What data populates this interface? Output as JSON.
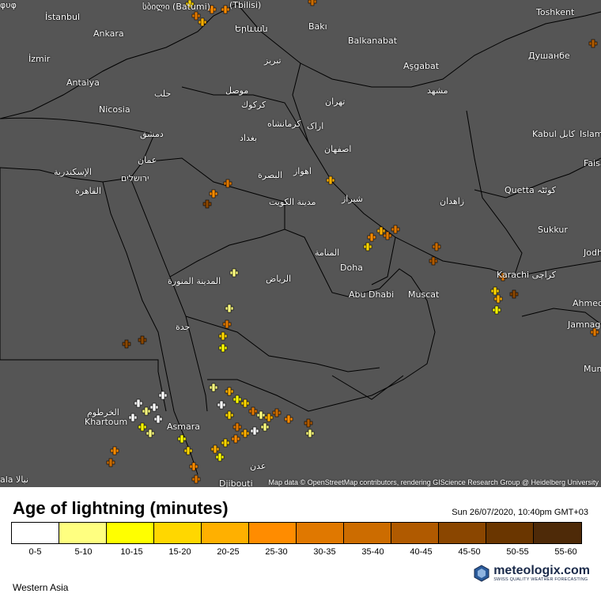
{
  "map": {
    "attribution": "Map data © OpenStreetMap contributors, rendering GIScience Research Group @ Heidelberg University",
    "cities": [
      {
        "name": "სბილი (Batumi)",
        "id": "batumi"
      },
      {
        "name": "(Tbilisi)",
        "id": "tbilisi"
      },
      {
        "name": "İstanbul",
        "id": "istanbul"
      },
      {
        "name": "Ankara",
        "id": "ankara"
      },
      {
        "name": "Երևան",
        "id": "yerevan"
      },
      {
        "name": "Bakı",
        "id": "baku"
      },
      {
        "name": "Balkanabat",
        "id": "balkanabat"
      },
      {
        "name": "Aşgabat",
        "id": "ashgabat"
      },
      {
        "name": "Toshkent",
        "id": "tashkent"
      },
      {
        "name": "Душанбе",
        "id": "dushanbe"
      },
      {
        "name": "İzmir",
        "id": "izmir"
      },
      {
        "name": "Antalya",
        "id": "antalya"
      },
      {
        "name": "Nicosia",
        "id": "nicosia"
      },
      {
        "name": "حلب",
        "id": "aleppo"
      },
      {
        "name": "موصل",
        "id": "mosul"
      },
      {
        "name": "تبریز",
        "id": "tabriz"
      },
      {
        "name": "كركوك",
        "id": "kirkuk"
      },
      {
        "name": "تهران",
        "id": "tehran"
      },
      {
        "name": "مشهد",
        "id": "mashhad"
      },
      {
        "name": "دمشق",
        "id": "damascus"
      },
      {
        "name": "كرمانشاه",
        "id": "kermanshah"
      },
      {
        "name": "اراک",
        "id": "arak"
      },
      {
        "name": "بغداد",
        "id": "baghdad"
      },
      {
        "name": "Kabul کابل",
        "id": "kabul"
      },
      {
        "name": "Islam",
        "id": "islamabad"
      },
      {
        "name": "عمان",
        "id": "amman"
      },
      {
        "name": "اصفهان",
        "id": "isfahan"
      },
      {
        "name": "الإسكندرية",
        "id": "alexandria"
      },
      {
        "name": "ירושלים",
        "id": "jerusalem"
      },
      {
        "name": "البصرة",
        "id": "basra"
      },
      {
        "name": "اهواز",
        "id": "ahvaz"
      },
      {
        "name": "Faisa",
        "id": "faisalabad"
      },
      {
        "name": "القاهرة",
        "id": "cairo"
      },
      {
        "name": "مدينة الكويت",
        "id": "kuwait"
      },
      {
        "name": "شیراز",
        "id": "shiraz"
      },
      {
        "name": "زاهدان",
        "id": "zahedan"
      },
      {
        "name": "Quetta کوئٹہ",
        "id": "quetta"
      },
      {
        "name": "Sukkur",
        "id": "sukkur"
      },
      {
        "name": "المنامة",
        "id": "manama"
      },
      {
        "name": "Doha",
        "id": "doha"
      },
      {
        "name": "Jodh",
        "id": "jodhpur"
      },
      {
        "name": "Karachi کراچی",
        "id": "karachi"
      },
      {
        "name": "المدينة المنورة",
        "id": "medina"
      },
      {
        "name": "الرياض",
        "id": "riyadh"
      },
      {
        "name": "Abu Dhabi",
        "id": "abudhabi"
      },
      {
        "name": "Muscat",
        "id": "muscat"
      },
      {
        "name": "Ahmed",
        "id": "ahmedabad"
      },
      {
        "name": "جدة",
        "id": "jeddah"
      },
      {
        "name": "Jamnag",
        "id": "jamnagar"
      },
      {
        "name": "Mum",
        "id": "mumbai"
      },
      {
        "name": "الخرطوم",
        "id": "khartoum-ar"
      },
      {
        "name": "Khartoum",
        "id": "khartoum"
      },
      {
        "name": "Asmara",
        "id": "asmara"
      },
      {
        "name": "عدن",
        "id": "aden"
      },
      {
        "name": "Djibouti",
        "id": "djibouti"
      },
      {
        "name": "φυφ",
        "id": "sofia"
      },
      {
        "name": "ala نيالا",
        "id": "nyala"
      }
    ]
  },
  "legend": {
    "title": "Age of lightning (minutes)",
    "timestamp": "Sun 26/07/2020, 10:40pm GMT+03",
    "colors": [
      "#ffffff",
      "#ffff80",
      "#ffff00",
      "#ffd700",
      "#ffb000",
      "#ff8c00",
      "#e07800",
      "#cc6c00",
      "#b05a00",
      "#8a4600",
      "#6a3600",
      "#4e2a08"
    ],
    "labels": [
      "0-5",
      "5-10",
      "10-15",
      "15-20",
      "20-25",
      "25-30",
      "30-35",
      "35-40",
      "40-45",
      "45-50",
      "50-55",
      "55-60"
    ],
    "region": "Western Asia",
    "brand_name": "meteologix.com",
    "brand_tagline": "SWISS QUALITY WEATHER FORECASTING"
  }
}
